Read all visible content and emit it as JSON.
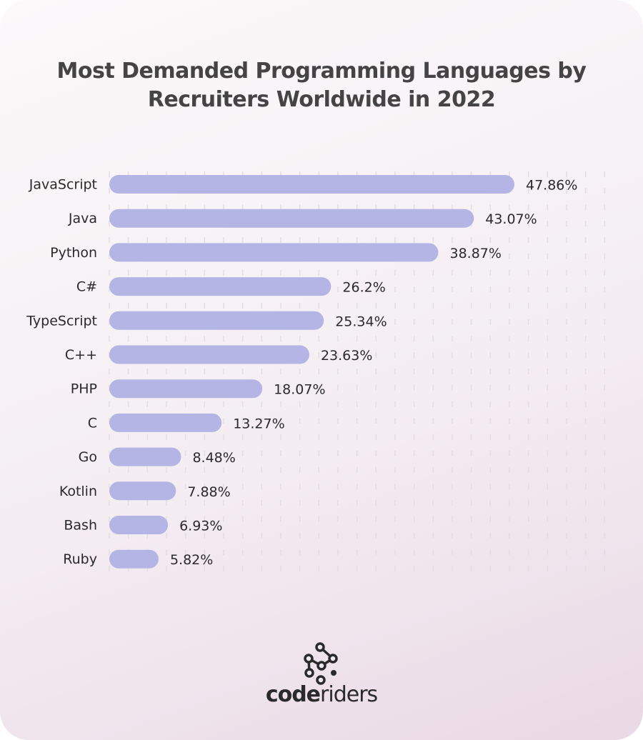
{
  "chart_data": {
    "type": "bar",
    "orientation": "horizontal",
    "title": "Most Demanded Programming Languages by Recruiters Worldwide in 2022",
    "categories": [
      "JavaScript",
      "Java",
      "Python",
      "C#",
      "TypeScript",
      "C++",
      "PHP",
      "C",
      "Go",
      "Kotlin",
      "Bash",
      "Ruby"
    ],
    "values": [
      47.86,
      43.07,
      38.87,
      26.2,
      25.34,
      23.63,
      18.07,
      13.27,
      8.48,
      7.88,
      6.93,
      5.82
    ],
    "data_labels": [
      "47.86%",
      "43.07%",
      "38.87%",
      "26.2%",
      "25.34%",
      "23.63%",
      "18.07%",
      "13.27%",
      "8.48%",
      "7.88%",
      "6.93%",
      "5.82%"
    ],
    "unit": "%",
    "grid": true,
    "bar_color": "#b4b5e4"
  },
  "brand": {
    "logo_text_bold": "code",
    "logo_text_light": "riders"
  }
}
